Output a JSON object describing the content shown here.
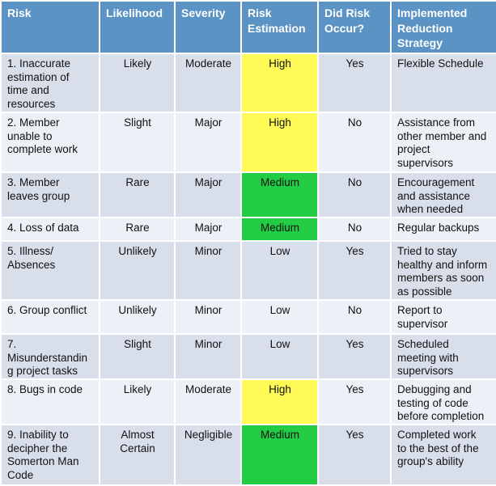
{
  "colors": {
    "header": "#5b93c5",
    "high": "#fffa55",
    "medium": "#22cc44",
    "row_dark": "#d9dfea",
    "row_light": "#edf0f6"
  },
  "headers": [
    "Risk",
    "Likelihood",
    "Severity",
    "Risk\nEstimation",
    "Did Risk\nOccur?",
    "Implemented\nReduction\nStrategy"
  ],
  "rows": [
    {
      "risk": "1.  Inaccurate\nestimation of\ntime and\nresources",
      "likelihood": "Likely",
      "severity": "Moderate",
      "estimation": "High",
      "occurred": "Yes",
      "strategy": "Flexible Schedule"
    },
    {
      "risk": "2. Member\nunable to\ncomplete work",
      "likelihood": "Slight",
      "severity": "Major",
      "estimation": "High",
      "occurred": "No",
      "strategy": "Assistance from\nother member and\nproject\nsupervisors"
    },
    {
      "risk": "3. Member\nleaves group",
      "likelihood": "Rare",
      "severity": "Major",
      "estimation": "Medium",
      "occurred": "No",
      "strategy": "Encouragement\nand assistance\nwhen needed"
    },
    {
      "risk": "4. Loss of data",
      "likelihood": "Rare",
      "severity": "Major",
      "estimation": "Medium",
      "occurred": "No",
      "strategy": "Regular backups"
    },
    {
      "risk": "5. Illness/\nAbsences",
      "likelihood": "Unlikely",
      "severity": "Minor",
      "estimation": "Low",
      "occurred": "Yes",
      "strategy": "Tried to stay\nhealthy and inform\nmembers as soon\nas possible"
    },
    {
      "risk": "6. Group conflict",
      "likelihood": "Unlikely",
      "severity": "Minor",
      "estimation": "Low",
      "occurred": "No",
      "strategy": "Report to\nsupervisor"
    },
    {
      "risk": "7.\nMisunderstandin\ng project tasks",
      "likelihood": "Slight",
      "severity": "Minor",
      "estimation": "Low",
      "occurred": "Yes",
      "strategy": "Scheduled\nmeeting with\nsupervisors"
    },
    {
      "risk": "8. Bugs in code",
      "likelihood": "Likely",
      "severity": "Moderate",
      "estimation": "High",
      "occurred": "Yes",
      "strategy": "Debugging and\ntesting of code\nbefore completion"
    },
    {
      "risk": "9. Inability to\ndecipher the\nSomerton Man\nCode",
      "likelihood": "Almost\nCertain",
      "severity": "Negligible",
      "estimation": "Medium",
      "occurred": "Yes",
      "strategy": "Completed work\nto the best of the\ngroup's ability"
    }
  ]
}
